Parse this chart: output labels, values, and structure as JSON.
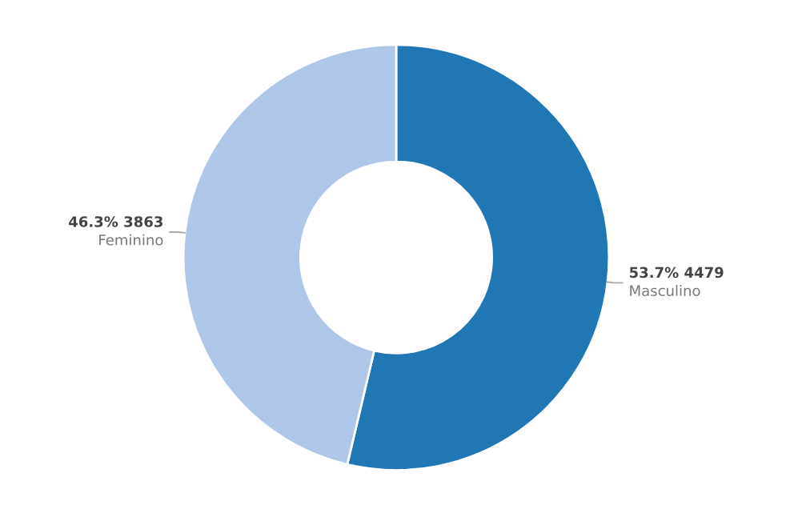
{
  "chart_data": {
    "type": "donut",
    "categories": [
      "Masculino",
      "Feminino"
    ],
    "values": [
      4479,
      3863
    ],
    "colors": [
      "#2077b4",
      "#aec7e8"
    ],
    "value_labels": [
      "53.7% 4479",
      "46.3% 3863"
    ],
    "legend": false
  }
}
